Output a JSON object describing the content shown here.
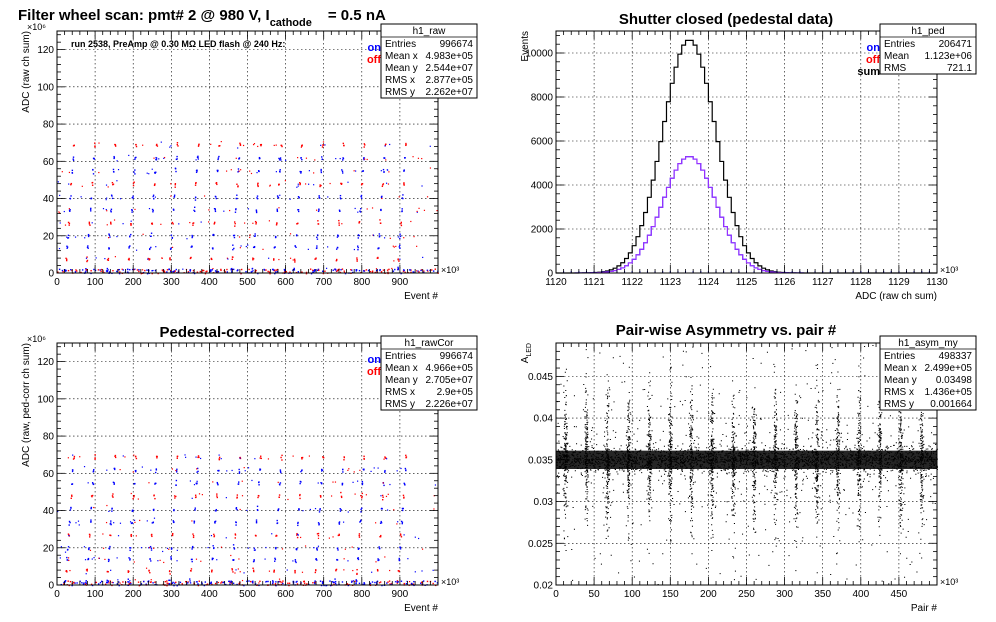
{
  "colors": {
    "on": "#0000ff",
    "off": "#ff0000",
    "sum": "#000000",
    "asym": "#000000",
    "cor": "#9b30ff"
  },
  "chart_data": [
    {
      "type": "scatter",
      "id": "raw",
      "title_main": "Filter wheel scan: pmt#   2 @   980 V, I",
      "title_sub": "cathode",
      "title_tail": "= 0.5 nA",
      "annotation": "run 2538, PreAmp @ 0.30 MΩ   LED flash @  240 Hz:",
      "xlabel": "Event #",
      "ylabel": "ADC (raw ch sum)",
      "xlim": [
        0,
        1000
      ],
      "ylim": [
        0,
        130
      ],
      "x_exponent": "×10³",
      "y_exponent": "×10⁶",
      "xticks": [
        "0",
        "100",
        "200",
        "300",
        "400",
        "500",
        "600",
        "700",
        "800",
        "900"
      ],
      "yticks": [
        "0",
        "20",
        "40",
        "60",
        "80",
        "100",
        "120"
      ],
      "legend": [
        "on",
        "off"
      ],
      "levels": [
        2,
        8,
        14,
        20,
        27,
        34,
        41,
        48,
        55,
        62,
        69
      ],
      "stats": {
        "name": "h1_raw",
        "rows": [
          [
            "Entries",
            "996674"
          ],
          [
            "Mean x",
            "4.983e+05"
          ],
          [
            "Mean y",
            "2.544e+07"
          ],
          [
            "RMS x",
            "2.877e+05"
          ],
          [
            "RMS y",
            "2.262e+07"
          ]
        ]
      }
    },
    {
      "type": "line",
      "id": "ped",
      "title": "Shutter closed (pedestal data)",
      "xlabel": "ADC (raw ch sum)",
      "ylabel": "Events",
      "xlim": [
        1120,
        1130
      ],
      "ylim": [
        0,
        11000
      ],
      "x_exponent": "×10³",
      "xticks": [
        "1120",
        "1121",
        "1122",
        "1123",
        "1124",
        "1125",
        "1126",
        "1127",
        "1128",
        "1129",
        "1130"
      ],
      "yticks": [
        "0",
        "2000",
        "4000",
        "6000",
        "8000",
        "10000"
      ],
      "legend": [
        "on",
        "off",
        "sum"
      ],
      "series": [
        {
          "name": "sum",
          "mean": 1123.5,
          "sigma": 0.7,
          "peak": 10600
        },
        {
          "name": "on",
          "mean": 1123.5,
          "sigma": 0.7,
          "peak": 5300
        },
        {
          "name": "off",
          "mean": 1123.5,
          "sigma": 0.7,
          "peak": 5300
        }
      ],
      "stats": {
        "name": "h1_ped",
        "rows": [
          [
            "Entries",
            "206471"
          ],
          [
            "Mean",
            "1.123e+06"
          ],
          [
            "RMS",
            "721.1"
          ]
        ]
      }
    },
    {
      "type": "scatter",
      "id": "rawcor",
      "title": "Pedestal-corrected",
      "xlabel": "Event #",
      "ylabel": "ADC (raw, ped-corr ch sum)",
      "xlim": [
        0,
        1000
      ],
      "ylim": [
        0,
        130
      ],
      "x_exponent": "×10³",
      "y_exponent": "×10⁶",
      "xticks": [
        "0",
        "100",
        "200",
        "300",
        "400",
        "500",
        "600",
        "700",
        "800",
        "900"
      ],
      "yticks": [
        "0",
        "20",
        "40",
        "60",
        "80",
        "100",
        "120"
      ],
      "legend": [
        "on",
        "off"
      ],
      "levels": [
        2,
        8,
        14,
        20,
        27,
        34,
        41,
        48,
        55,
        62,
        69
      ],
      "stats": {
        "name": "h1_rawCor",
        "rows": [
          [
            "Entries",
            "996674"
          ],
          [
            "Mean x",
            "4.966e+05"
          ],
          [
            "Mean y",
            "2.705e+07"
          ],
          [
            "RMS x",
            "2.9e+05"
          ],
          [
            "RMS y",
            "2.226e+07"
          ]
        ]
      }
    },
    {
      "type": "scatter",
      "id": "asym",
      "title": "Pair-wise Asymmetry vs. pair #",
      "xlabel": "Pair #",
      "ylabel": "A",
      "ylabel_sub": "LED",
      "xlim": [
        0,
        500
      ],
      "ylim": [
        0.02,
        0.049
      ],
      "x_exponent": "×10³",
      "xticks": [
        "0",
        "50",
        "100",
        "150",
        "200",
        "250",
        "300",
        "350",
        "400",
        "450"
      ],
      "yticks": [
        "0.02",
        "0.025",
        "0.03",
        "0.035",
        "0.04",
        "0.045"
      ],
      "center": 0.035,
      "stats": {
        "name": "h1_asym_my",
        "rows": [
          [
            "Entries",
            "498337"
          ],
          [
            "Mean x",
            "2.499e+05"
          ],
          [
            "Mean y",
            "0.03498"
          ],
          [
            "RMS x",
            "1.436e+05"
          ],
          [
            "RMS y",
            "0.001664"
          ]
        ]
      }
    }
  ]
}
